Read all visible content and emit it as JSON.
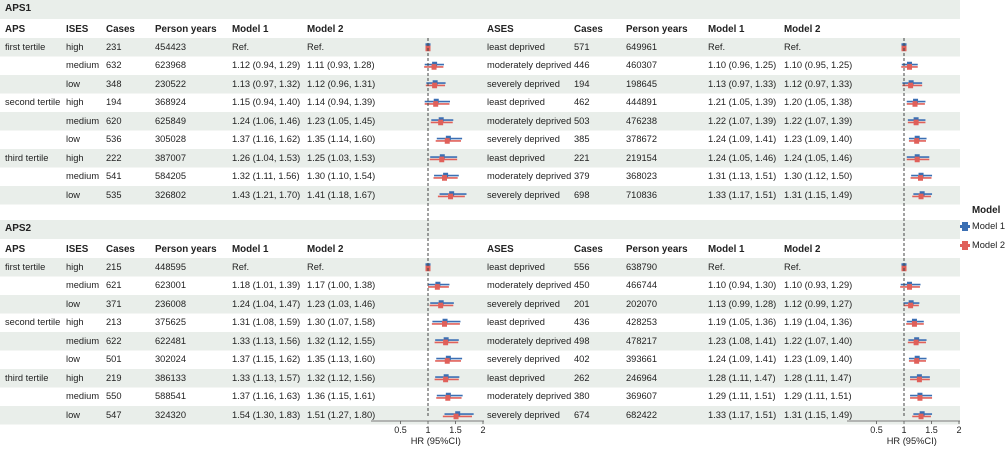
{
  "colors": {
    "model1": "#3b6fb3",
    "model2": "#e0605a",
    "band": "#e9eeea",
    "refline": "#444444"
  },
  "legend": {
    "title": "Model",
    "items": [
      "Model 1",
      "Model 2"
    ]
  },
  "chart_data": {
    "type": "forest",
    "xlabel": "HR (95%CI)",
    "xticks": [
      "0.5",
      "1",
      "1.5",
      "2"
    ],
    "xlim": [
      0,
      2
    ],
    "reference_line": 1,
    "legend_position": "right",
    "panels": [
      {
        "title": "APS1",
        "left": {
          "headers": [
            "APS",
            "ISES",
            "Cases",
            "Person years",
            "Model 1",
            "Model 2"
          ],
          "rows": [
            {
              "group": "first tertile",
              "level": "high",
              "cases": "231",
              "py": "454423",
              "m1_text": "Ref.",
              "m2_text": "Ref.",
              "m1": [
                1,
                1,
                1
              ],
              "m2": [
                1,
                1,
                1
              ]
            },
            {
              "group": "",
              "level": "medium",
              "cases": "632",
              "py": "623968",
              "m1_text": "1.12 (0.94, 1.29)",
              "m2_text": "1.11 (0.93, 1.28)",
              "m1": [
                1.12,
                0.94,
                1.29
              ],
              "m2": [
                1.11,
                0.93,
                1.28
              ]
            },
            {
              "group": "",
              "level": "low",
              "cases": "348",
              "py": "230522",
              "m1_text": "1.13 (0.97, 1.32)",
              "m2_text": "1.12 (0.96, 1.31)",
              "m1": [
                1.13,
                0.97,
                1.32
              ],
              "m2": [
                1.12,
                0.96,
                1.31
              ]
            },
            {
              "group": "second tertile",
              "level": "high",
              "cases": "194",
              "py": "368924",
              "m1_text": "1.15 (0.94, 1.40)",
              "m2_text": "1.14 (0.94, 1.39)",
              "m1": [
                1.15,
                0.94,
                1.4
              ],
              "m2": [
                1.14,
                0.94,
                1.39
              ]
            },
            {
              "group": "",
              "level": "medium",
              "cases": "620",
              "py": "625849",
              "m1_text": "1.24 (1.06, 1.46)",
              "m2_text": "1.23 (1.05, 1.45)",
              "m1": [
                1.24,
                1.06,
                1.46
              ],
              "m2": [
                1.23,
                1.05,
                1.45
              ]
            },
            {
              "group": "",
              "level": "low",
              "cases": "536",
              "py": "305028",
              "m1_text": "1.37 (1.16, 1.62)",
              "m2_text": "1.35 (1.14, 1.60)",
              "m1": [
                1.37,
                1.16,
                1.62
              ],
              "m2": [
                1.35,
                1.14,
                1.6
              ]
            },
            {
              "group": "third tertile",
              "level": "high",
              "cases": "222",
              "py": "387007",
              "m1_text": "1.26 (1.04, 1.53)",
              "m2_text": "1.25 (1.03, 1.53)",
              "m1": [
                1.26,
                1.04,
                1.53
              ],
              "m2": [
                1.25,
                1.03,
                1.53
              ]
            },
            {
              "group": "",
              "level": "medium",
              "cases": "541",
              "py": "584205",
              "m1_text": "1.32 (1.11, 1.56)",
              "m2_text": "1.30 (1.10, 1.54)",
              "m1": [
                1.32,
                1.11,
                1.56
              ],
              "m2": [
                1.3,
                1.1,
                1.54
              ]
            },
            {
              "group": "",
              "level": "low",
              "cases": "535",
              "py": "326802",
              "m1_text": "1.43 (1.21, 1.70)",
              "m2_text": "1.41 (1.18, 1.67)",
              "m1": [
                1.43,
                1.21,
                1.7
              ],
              "m2": [
                1.41,
                1.18,
                1.67
              ]
            }
          ]
        },
        "right": {
          "headers": [
            "ASES",
            "Cases",
            "Person years",
            "Model 1",
            "Model 2"
          ],
          "rows": [
            {
              "level": "least deprived",
              "cases": "571",
              "py": "649961",
              "m1_text": "Ref.",
              "m2_text": "Ref.",
              "m1": [
                1,
                1,
                1
              ],
              "m2": [
                1,
                1,
                1
              ]
            },
            {
              "level": "moderately deprived",
              "cases": "446",
              "py": "460307",
              "m1_text": "1.10 (0.96, 1.25)",
              "m2_text": "1.10 (0.95, 1.25)",
              "m1": [
                1.1,
                0.96,
                1.25
              ],
              "m2": [
                1.1,
                0.95,
                1.25
              ]
            },
            {
              "level": "severely deprived",
              "cases": "194",
              "py": "198645",
              "m1_text": "1.13 (0.97, 1.33)",
              "m2_text": "1.12 (0.97, 1.33)",
              "m1": [
                1.13,
                0.97,
                1.33
              ],
              "m2": [
                1.12,
                0.97,
                1.33
              ]
            },
            {
              "level": "least deprived",
              "cases": "462",
              "py": "444891",
              "m1_text": "1.21 (1.05, 1.39)",
              "m2_text": "1.20 (1.05, 1.38)",
              "m1": [
                1.21,
                1.05,
                1.39
              ],
              "m2": [
                1.2,
                1.05,
                1.38
              ]
            },
            {
              "level": "moderately deprived",
              "cases": "503",
              "py": "476238",
              "m1_text": "1.22 (1.07, 1.39)",
              "m2_text": "1.22 (1.07, 1.39)",
              "m1": [
                1.22,
                1.07,
                1.39
              ],
              "m2": [
                1.22,
                1.07,
                1.39
              ]
            },
            {
              "level": "severely deprived",
              "cases": "385",
              "py": "378672",
              "m1_text": "1.24 (1.09, 1.41)",
              "m2_text": "1.23 (1.09, 1.40)",
              "m1": [
                1.24,
                1.09,
                1.41
              ],
              "m2": [
                1.23,
                1.09,
                1.4
              ]
            },
            {
              "level": "least deprived",
              "cases": "221",
              "py": "219154",
              "m1_text": "1.24 (1.05, 1.46)",
              "m2_text": "1.24 (1.05, 1.46)",
              "m1": [
                1.24,
                1.05,
                1.46
              ],
              "m2": [
                1.24,
                1.05,
                1.46
              ]
            },
            {
              "level": "moderately deprived",
              "cases": "379",
              "py": "368023",
              "m1_text": "1.31 (1.13, 1.51)",
              "m2_text": "1.30 (1.12, 1.50)",
              "m1": [
                1.31,
                1.13,
                1.51
              ],
              "m2": [
                1.3,
                1.12,
                1.5
              ]
            },
            {
              "level": "severely deprived",
              "cases": "698",
              "py": "710836",
              "m1_text": "1.33 (1.17, 1.51)",
              "m2_text": "1.31 (1.15, 1.49)",
              "m1": [
                1.33,
                1.17,
                1.51
              ],
              "m2": [
                1.31,
                1.15,
                1.49
              ]
            }
          ]
        }
      },
      {
        "title": "APS2",
        "left": {
          "headers": [
            "APS",
            "ISES",
            "Cases",
            "Person years",
            "Model 1",
            "Model 2"
          ],
          "rows": [
            {
              "group": "first tertile",
              "level": "high",
              "cases": "215",
              "py": "448595",
              "m1_text": "Ref.",
              "m2_text": "Ref.",
              "m1": [
                1,
                1,
                1
              ],
              "m2": [
                1,
                1,
                1
              ]
            },
            {
              "group": "",
              "level": "medium",
              "cases": "621",
              "py": "623001",
              "m1_text": "1.18 (1.01, 1.39)",
              "m2_text": "1.17 (1.00, 1.38)",
              "m1": [
                1.18,
                1.01,
                1.39
              ],
              "m2": [
                1.17,
                1.0,
                1.38
              ]
            },
            {
              "group": "",
              "level": "low",
              "cases": "371",
              "py": "236008",
              "m1_text": "1.24 (1.04, 1.47)",
              "m2_text": "1.23 (1.03, 1.46)",
              "m1": [
                1.24,
                1.04,
                1.47
              ],
              "m2": [
                1.23,
                1.03,
                1.46
              ]
            },
            {
              "group": "second tertile",
              "level": "high",
              "cases": "213",
              "py": "375625",
              "m1_text": "1.31 (1.08, 1.59)",
              "m2_text": "1.30 (1.07, 1.58)",
              "m1": [
                1.31,
                1.08,
                1.59
              ],
              "m2": [
                1.3,
                1.07,
                1.58
              ]
            },
            {
              "group": "",
              "level": "medium",
              "cases": "622",
              "py": "622481",
              "m1_text": "1.33 (1.13, 1.56)",
              "m2_text": "1.32 (1.12, 1.55)",
              "m1": [
                1.33,
                1.13,
                1.56
              ],
              "m2": [
                1.32,
                1.12,
                1.55
              ]
            },
            {
              "group": "",
              "level": "low",
              "cases": "501",
              "py": "302024",
              "m1_text": "1.37 (1.15, 1.62)",
              "m2_text": "1.35 (1.13, 1.60)",
              "m1": [
                1.37,
                1.15,
                1.62
              ],
              "m2": [
                1.35,
                1.13,
                1.6
              ]
            },
            {
              "group": "third tertile",
              "level": "high",
              "cases": "219",
              "py": "386133",
              "m1_text": "1.33 (1.13, 1.57)",
              "m2_text": "1.32 (1.12, 1.56)",
              "m1": [
                1.33,
                1.13,
                1.57
              ],
              "m2": [
                1.32,
                1.12,
                1.56
              ]
            },
            {
              "group": "",
              "level": "medium",
              "cases": "550",
              "py": "588541",
              "m1_text": "1.37 (1.16, 1.63)",
              "m2_text": "1.36 (1.15, 1.61)",
              "m1": [
                1.37,
                1.16,
                1.63
              ],
              "m2": [
                1.36,
                1.15,
                1.61
              ]
            },
            {
              "group": "",
              "level": "low",
              "cases": "547",
              "py": "324320",
              "m1_text": "1.54 (1.30, 1.83)",
              "m2_text": "1.51 (1.27, 1.80)",
              "m1": [
                1.54,
                1.3,
                1.83
              ],
              "m2": [
                1.51,
                1.27,
                1.8
              ]
            }
          ]
        },
        "right": {
          "headers": [
            "ASES",
            "Cases",
            "Person years",
            "Model 1",
            "Model 2"
          ],
          "rows": [
            {
              "level": "least deprived",
              "cases": "556",
              "py": "638790",
              "m1_text": "Ref.",
              "m2_text": "Ref.",
              "m1": [
                1,
                1,
                1
              ],
              "m2": [
                1,
                1,
                1
              ]
            },
            {
              "level": "moderately deprived",
              "cases": "450",
              "py": "466744",
              "m1_text": "1.10 (0.94, 1.30)",
              "m2_text": "1.10 (0.93, 1.29)",
              "m1": [
                1.1,
                0.94,
                1.3
              ],
              "m2": [
                1.1,
                0.93,
                1.29
              ]
            },
            {
              "level": "severely deprived",
              "cases": "201",
              "py": "202070",
              "m1_text": "1.13 (0.99, 1.28)",
              "m2_text": "1.12 (0.99, 1.27)",
              "m1": [
                1.13,
                0.99,
                1.28
              ],
              "m2": [
                1.12,
                0.99,
                1.27
              ]
            },
            {
              "level": "least deprived",
              "cases": "436",
              "py": "428253",
              "m1_text": "1.19 (1.05, 1.36)",
              "m2_text": "1.19 (1.04, 1.36)",
              "m1": [
                1.19,
                1.05,
                1.36
              ],
              "m2": [
                1.19,
                1.04,
                1.36
              ]
            },
            {
              "level": "moderately deprived",
              "cases": "498",
              "py": "478217",
              "m1_text": "1.23 (1.08, 1.41)",
              "m2_text": "1.22 (1.07, 1.40)",
              "m1": [
                1.23,
                1.08,
                1.41
              ],
              "m2": [
                1.22,
                1.07,
                1.4
              ]
            },
            {
              "level": "severely deprived",
              "cases": "402",
              "py": "393661",
              "m1_text": "1.24 (1.09, 1.41)",
              "m2_text": "1.23 (1.09, 1.40)",
              "m1": [
                1.24,
                1.09,
                1.41
              ],
              "m2": [
                1.23,
                1.09,
                1.4
              ]
            },
            {
              "level": "least deprived",
              "cases": "262",
              "py": "246964",
              "m1_text": "1.28 (1.11, 1.47)",
              "m2_text": "1.28 (1.11, 1.47)",
              "m1": [
                1.28,
                1.11,
                1.47
              ],
              "m2": [
                1.28,
                1.11,
                1.47
              ]
            },
            {
              "level": "moderately deprived",
              "cases": "380",
              "py": "369607",
              "m1_text": "1.29 (1.11, 1.51)",
              "m2_text": "1.29 (1.11, 1.51)",
              "m1": [
                1.29,
                1.11,
                1.51
              ],
              "m2": [
                1.29,
                1.11,
                1.51
              ]
            },
            {
              "level": "severely deprived",
              "cases": "674",
              "py": "682422",
              "m1_text": "1.33 (1.17, 1.51)",
              "m2_text": "1.31 (1.15, 1.49)",
              "m1": [
                1.33,
                1.17,
                1.51
              ],
              "m2": [
                1.31,
                1.15,
                1.49
              ]
            }
          ]
        }
      }
    ]
  }
}
